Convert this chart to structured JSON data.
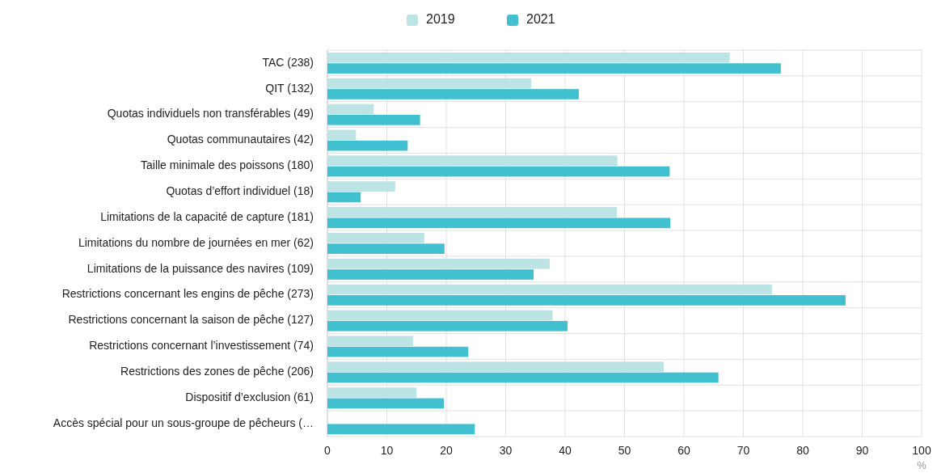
{
  "chart_data": {
    "type": "bar",
    "orientation": "horizontal",
    "categories": [
      "TAC (238)",
      "QIT (132)",
      "Quotas individuels non transférables (49)",
      "Quotas communautaires (42)",
      "Taille minimale des poissons (180)",
      "Quotas d’effort individuel (18)",
      "Limitations de la capacité de capture (181)",
      "Limitations du nombre de journées en mer (62)",
      "Limitations de la puissance des navires (109)",
      "Restrictions concernant les engins de pêche (273)",
      "Restrictions concernant la saison de pêche (127)",
      "Restrictions concernant l’investissement (74)",
      "Restrictions des zones de pêche (206)",
      "Dispositif d’exclusion (61)",
      "Accès spécial pour un sous-groupe de pêcheurs (…"
    ],
    "series": [
      {
        "name": "2019",
        "color": "#bde4e4",
        "values": [
          67.7,
          34.3,
          7.8,
          4.8,
          48.8,
          11.4,
          48.7,
          16.3,
          37.4,
          74.8,
          37.9,
          14.4,
          56.6,
          15.0,
          null
        ]
      },
      {
        "name": "2021",
        "color": "#41c0cf",
        "values": [
          76.3,
          42.3,
          15.6,
          13.5,
          57.6,
          5.6,
          57.7,
          19.7,
          34.7,
          87.2,
          40.4,
          23.7,
          65.8,
          19.6,
          24.8
        ]
      }
    ],
    "xlabel": "%",
    "xlim": [
      0,
      100
    ],
    "xticks": [
      0,
      10,
      20,
      30,
      40,
      50,
      60,
      70,
      80,
      90,
      100
    ],
    "grid": true,
    "legend": "top"
  }
}
